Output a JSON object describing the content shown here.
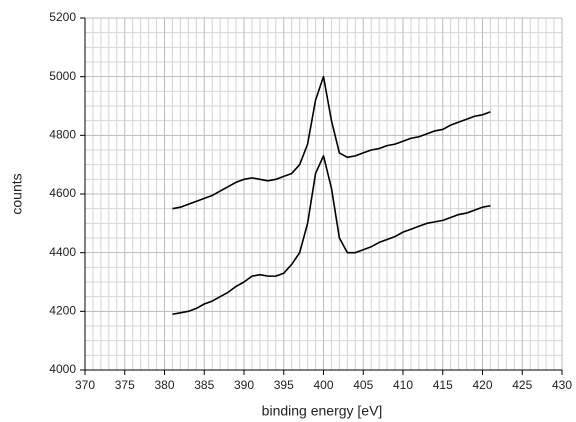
{
  "chart_data": {
    "type": "line",
    "xlabel": "binding energy [eV]",
    "ylabel": "counts",
    "x": [
      381,
      382,
      383,
      384,
      385,
      386,
      387,
      388,
      389,
      390,
      391,
      392,
      393,
      394,
      395,
      396,
      397,
      398,
      399,
      400,
      401,
      402,
      403,
      404,
      405,
      406,
      407,
      408,
      409,
      410,
      411,
      412,
      413,
      414,
      415,
      416,
      417,
      418,
      419,
      420,
      421
    ],
    "series": [
      {
        "color": "#000000",
        "values": [
          4550,
          4555,
          4565,
          4575,
          4585,
          4595,
          4610,
          4625,
          4640,
          4650,
          4655,
          4650,
          4645,
          4650,
          4660,
          4670,
          4700,
          4770,
          4920,
          5000,
          4850,
          4740,
          4725,
          4730,
          4740,
          4750,
          4755,
          4765,
          4770,
          4780,
          4790,
          4795,
          4805,
          4815,
          4820,
          4835,
          4845,
          4855,
          4865,
          4870,
          4880
        ]
      },
      {
        "color": "#000000",
        "values": [
          4190,
          4195,
          4200,
          4210,
          4225,
          4235,
          4250,
          4265,
          4285,
          4300,
          4320,
          4325,
          4320,
          4320,
          4330,
          4360,
          4400,
          4500,
          4670,
          4730,
          4620,
          4450,
          4400,
          4400,
          4410,
          4420,
          4435,
          4445,
          4455,
          4470,
          4480,
          4490,
          4500,
          4505,
          4510,
          4520,
          4530,
          4535,
          4545,
          4555,
          4560
        ]
      }
    ],
    "xlim": [
      370,
      430
    ],
    "ylim": [
      4000,
      5200
    ],
    "xticks": [
      370,
      375,
      380,
      385,
      390,
      395,
      400,
      405,
      410,
      415,
      420,
      425,
      430
    ],
    "yticks": [
      4000,
      4200,
      4400,
      4600,
      4800,
      5000,
      5200
    ],
    "x_minor_grid": [
      371,
      372,
      373,
      374,
      376,
      377,
      378,
      379,
      381,
      382,
      383,
      384,
      386,
      387,
      388,
      389,
      391,
      392,
      393,
      394,
      396,
      397,
      398,
      399,
      401,
      402,
      403,
      404,
      406,
      407,
      408,
      409,
      411,
      412,
      413,
      414,
      416,
      417,
      418,
      419,
      421,
      422,
      423,
      424,
      426,
      427,
      428,
      429
    ],
    "y_minor_grid": [
      4050,
      4100,
      4150,
      4250,
      4300,
      4350,
      4450,
      4500,
      4550,
      4650,
      4700,
      4750,
      4850,
      4900,
      4950,
      5050,
      5100,
      5150
    ],
    "grid": true
  }
}
